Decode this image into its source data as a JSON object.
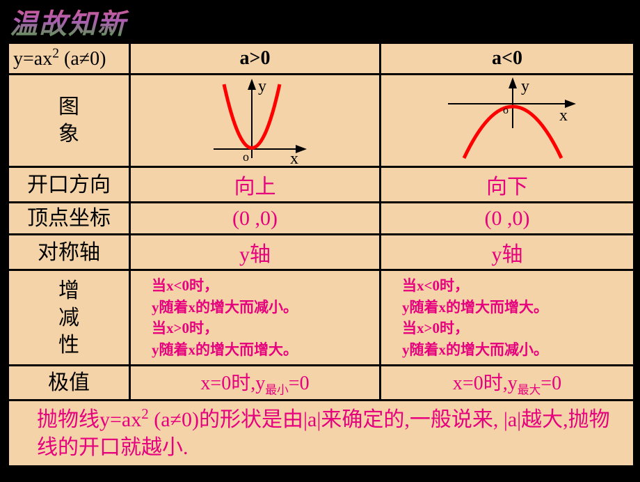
{
  "title": "温故知新",
  "table": {
    "header": {
      "c1": "y=ax² (a≠0)",
      "c2": "a>0",
      "c3": "a<0"
    },
    "rows": {
      "graph": {
        "label": "图\n象",
        "pos": {
          "type": "parabola-up",
          "axis_color": "#000000",
          "curve_color": "#ff0000",
          "y_label": "y",
          "x_label": "x",
          "origin_label": "o"
        },
        "neg": {
          "type": "parabola-down",
          "axis_color": "#000000",
          "curve_color": "#ff0000",
          "y_label": "y",
          "x_label": "x",
          "origin_label": "o"
        }
      },
      "opening": {
        "label": "开口方向",
        "pos": "向上",
        "neg": "向下"
      },
      "vertex": {
        "label": "顶点坐标",
        "pos": "(0 ,0)",
        "neg": "(0 ,0)"
      },
      "axis": {
        "label": "对称轴",
        "pos": "y轴",
        "neg": "y轴"
      },
      "mono": {
        "label": "增\n减\n性",
        "pos": "当x<0时，\ny随着x的增大而减小。\n当x>0时，\ny随着x的增大而增大。",
        "neg": "当x<0时，\ny随着x的增大而增大。\n当x>0时，\ny随着x的增大而减小。"
      },
      "extreme": {
        "label": "极值",
        "pos_prefix": "x=0时,y",
        "pos_sub": "最小",
        "pos_suffix": "=0",
        "neg_prefix": "x=0时,y",
        "neg_sub": "最大",
        "neg_suffix": "=0"
      }
    },
    "footer": "抛物线y=ax² (a≠0)的形状是由|a|来确定的,一般说来, |a|越大,抛物线的开口就越小."
  },
  "colors": {
    "table_bg": "#f5d3a8",
    "accent": "#e6007e",
    "curve": "#ff0000"
  }
}
